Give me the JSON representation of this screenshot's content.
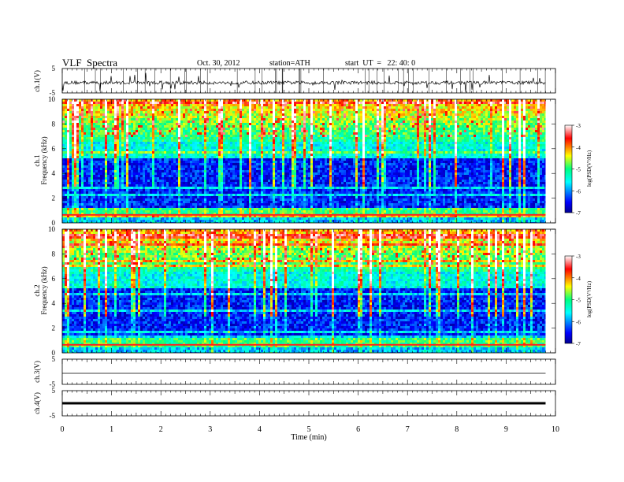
{
  "header": {
    "title": "VLF  Spectra",
    "date": "Oct. 30, 2012",
    "station": "station=ATH",
    "start": "start  UT  =   22: 40: 0"
  },
  "chart_data": [
    {
      "type": "line",
      "panel": "ch1-waveform",
      "ylabel": "ch.1(V)",
      "yticks": [
        "5",
        "-5"
      ],
      "ylim": [
        -5,
        5
      ],
      "x": [
        0,
        9.8
      ],
      "series": [
        {
          "values": [
            -0.8,
            -0.8
          ]
        }
      ]
    },
    {
      "type": "heatmap",
      "panel": "ch1-spectrogram",
      "ylabel_lines": [
        "ch.1",
        "Frequency  (kHz)"
      ],
      "yticks": [
        "0",
        "2",
        "4",
        "6",
        "8",
        "10"
      ],
      "ylim": [
        0,
        10
      ],
      "xlim": [
        0,
        9.8
      ],
      "colorbar": {
        "label": "log(PSD(V²/Hz)",
        "ticks": [
          "-3",
          "-4",
          "-5",
          "-6",
          "-7"
        ],
        "range": [
          -7,
          -3
        ]
      }
    },
    {
      "type": "heatmap",
      "panel": "ch2-spectrogram",
      "ylabel_lines": [
        "ch.2",
        "Frequency  (kHz)"
      ],
      "yticks": [
        "0",
        "2",
        "4",
        "6",
        "8",
        "10"
      ],
      "ylim": [
        0,
        10
      ],
      "xlim": [
        0,
        9.8
      ],
      "colorbar": {
        "label": "log(PSD(V²/Hz)",
        "ticks": [
          "-3",
          "-4",
          "-5",
          "-6",
          "-7"
        ],
        "range": [
          -7,
          -3
        ]
      }
    },
    {
      "type": "line",
      "panel": "ch3-waveform",
      "ylabel": "ch.3(V)",
      "yticks": [
        "5",
        "-5"
      ],
      "ylim": [
        -5,
        5
      ],
      "x": [
        0,
        9.8
      ],
      "series": [
        {
          "values": [
            0,
            0
          ]
        }
      ]
    },
    {
      "type": "line",
      "panel": "ch4-waveform",
      "ylabel": "ch.4(V)",
      "yticks": [
        "5",
        "-5"
      ],
      "ylim": [
        -5,
        5
      ],
      "x": [
        0,
        9.8
      ],
      "series": [
        {
          "values": [
            0,
            0
          ]
        }
      ]
    }
  ],
  "xaxis": {
    "label": "Time  (min)",
    "ticks": [
      "0",
      "1",
      "2",
      "3",
      "4",
      "5",
      "6",
      "7",
      "8",
      "9",
      "10"
    ],
    "xlim": [
      0,
      10
    ]
  },
  "colors": {
    "spectro_low": "#00008f",
    "spectro_mid": "#00ff80",
    "spectro_high": "#ff0000"
  }
}
